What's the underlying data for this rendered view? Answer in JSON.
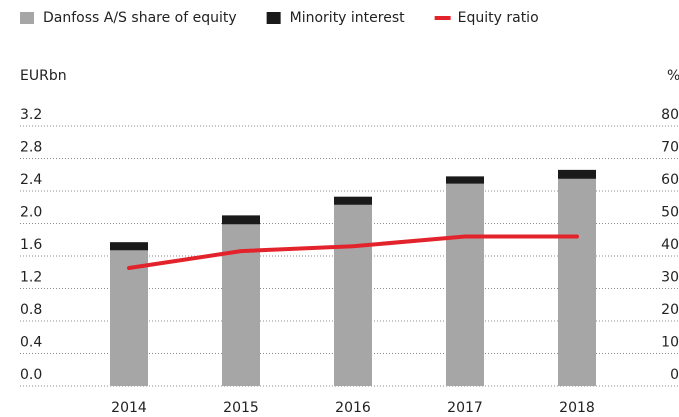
{
  "chart_data": {
    "type": "bar",
    "categories": [
      "2014",
      "2015",
      "2016",
      "2017",
      "2018"
    ],
    "series": [
      {
        "name": "Danfoss A/S share of equity",
        "color": "#a7a6a6",
        "values": [
          1.67,
          1.99,
          2.23,
          2.49,
          2.55
        ]
      },
      {
        "name": "Minority interest",
        "color": "#1a1a1a",
        "values": [
          0.1,
          0.11,
          0.1,
          0.09,
          0.11
        ]
      },
      {
        "name": "Equity ratio",
        "color": "#e3232b",
        "type": "line",
        "axis": "y2",
        "values": [
          36.3,
          41.5,
          43,
          46,
          46
        ]
      }
    ],
    "ylabel": "EURbn",
    "y2label": "%",
    "ylim": [
      0,
      3.2
    ],
    "yticks": [
      {
        "value": 0,
        "label": "0.0"
      },
      0.4,
      0.8,
      1.2,
      1.6,
      {
        "value": 2,
        "label": "2.0"
      },
      2.4,
      2.8,
      3.2
    ],
    "y2lim": [
      0,
      80
    ],
    "y2ticks": [
      0,
      10,
      20,
      30,
      40,
      50,
      60,
      70,
      80
    ],
    "grid": true,
    "stacked": true,
    "legend": "top"
  }
}
